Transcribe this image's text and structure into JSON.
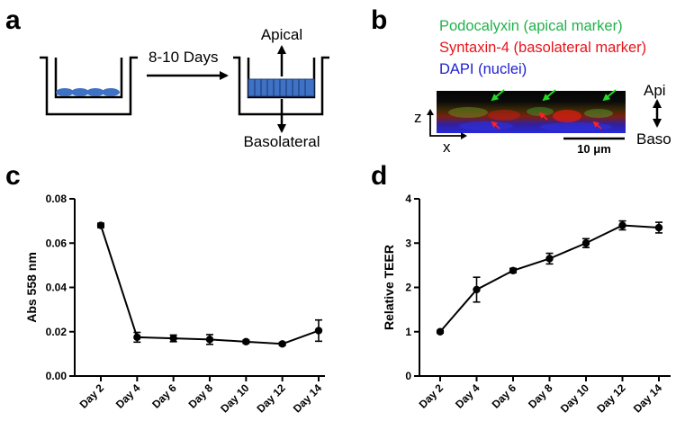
{
  "panels": {
    "a": {
      "letter": "a",
      "duration": "8-10 Days",
      "apical": "Apical",
      "basolateral": "Basolateral"
    },
    "b": {
      "letter": "b",
      "legend": [
        {
          "text": "Podocalyxin (apical marker)",
          "color": "#22b14c"
        },
        {
          "text": "Syntaxin-4 (basolateral marker)",
          "color": "#e8141c"
        },
        {
          "text": "DAPI (nuclei)",
          "color": "#2020d0"
        }
      ],
      "axis_z": "z",
      "axis_x": "x",
      "scale_bar": "10 μm",
      "api": "Api",
      "baso": "Baso"
    },
    "c": {
      "letter": "c"
    },
    "d": {
      "letter": "d"
    }
  },
  "chart_data": [
    {
      "type": "line",
      "panel": "c",
      "categories": [
        "Day 2",
        "Day 4",
        "Day 6",
        "Day 8",
        "Day 10",
        "Day 12",
        "Day 14"
      ],
      "values": [
        0.068,
        0.0175,
        0.017,
        0.0165,
        0.0155,
        0.0145,
        0.0205
      ],
      "errors": [
        0.001,
        0.0022,
        0.0015,
        0.0022,
        0.0007,
        0.0007,
        0.0048
      ],
      "ylabel": "Abs 558 nm",
      "ylim": [
        0,
        0.08
      ],
      "yticks": [
        "0.00",
        "0.02",
        "0.04",
        "0.06",
        "0.08"
      ],
      "ytick_values": [
        0,
        0.02,
        0.04,
        0.06,
        0.08
      ]
    },
    {
      "type": "line",
      "panel": "d",
      "categories": [
        "Day 2",
        "Day 4",
        "Day 6",
        "Day 8",
        "Day 10",
        "Day 12",
        "Day 14"
      ],
      "values": [
        1.0,
        1.95,
        2.38,
        2.65,
        3.0,
        3.4,
        3.35
      ],
      "errors": [
        0.03,
        0.28,
        0.05,
        0.12,
        0.1,
        0.1,
        0.12
      ],
      "ylabel": "Relative TEER",
      "ylim": [
        0,
        4
      ],
      "yticks": [
        "0",
        "1",
        "2",
        "3",
        "4"
      ],
      "ytick_values": [
        0,
        1,
        2,
        3,
        4
      ]
    }
  ]
}
